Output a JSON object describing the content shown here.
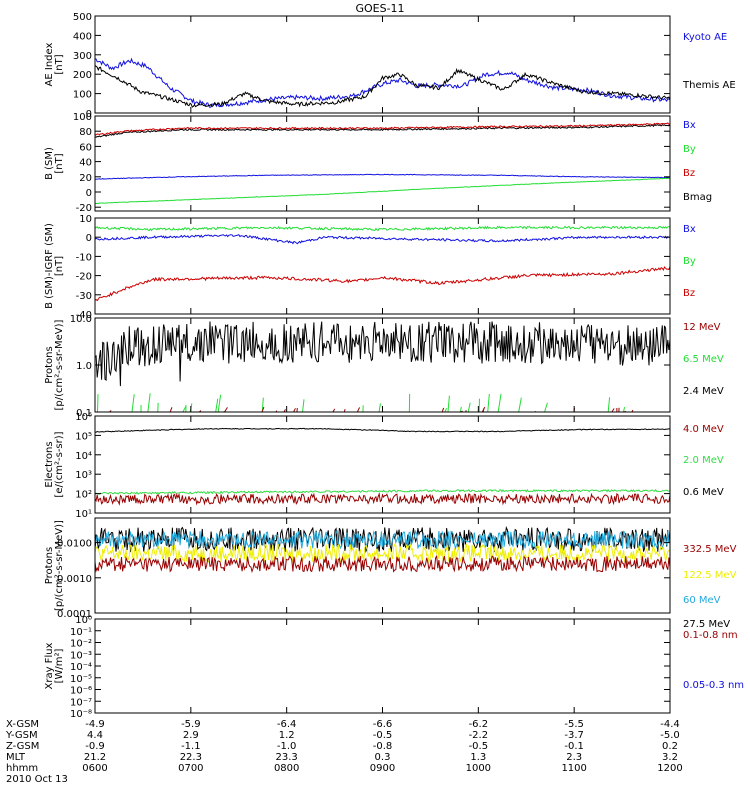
{
  "title": "GOES-11",
  "colors": {
    "black": "#000000",
    "blue": "#1010e0",
    "red": "#cc0000",
    "darkred": "#990000",
    "green": "#22dd33",
    "lgreen": "#33dd44",
    "cyan": "#22aadd",
    "yellow": "#eeee00"
  },
  "chart_data": [
    {
      "type": "line",
      "ylabel": "AE Index\n[nT]",
      "ylim": [
        0,
        500
      ],
      "log": false,
      "ticks": [
        "0",
        "100",
        "200",
        "300",
        "400",
        "500"
      ],
      "tickvals": [
        0,
        100,
        200,
        300,
        400,
        500
      ],
      "legend": [
        {
          "name": "Kyoto AE",
          "color": "blue"
        },
        {
          "name": "Themis AE",
          "color": "black"
        }
      ],
      "series": [
        {
          "name": "Kyoto AE",
          "color": "blue",
          "mode": "noisy",
          "noise": 12,
          "points": [
            [
              0,
              280
            ],
            [
              0.03,
              230
            ],
            [
              0.06,
              270
            ],
            [
              0.09,
              240
            ],
            [
              0.13,
              130
            ],
            [
              0.17,
              60
            ],
            [
              0.2,
              40
            ],
            [
              0.25,
              50
            ],
            [
              0.3,
              70
            ],
            [
              0.35,
              80
            ],
            [
              0.4,
              75
            ],
            [
              0.45,
              90
            ],
            [
              0.5,
              150
            ],
            [
              0.53,
              170
            ],
            [
              0.56,
              140
            ],
            [
              0.6,
              145
            ],
            [
              0.64,
              140
            ],
            [
              0.68,
              200
            ],
            [
              0.72,
              210
            ],
            [
              0.75,
              170
            ],
            [
              0.8,
              130
            ],
            [
              0.85,
              120
            ],
            [
              0.9,
              90
            ],
            [
              0.95,
              75
            ],
            [
              1,
              65
            ]
          ]
        },
        {
          "name": "Themis AE",
          "color": "black",
          "mode": "noisy",
          "noise": 10,
          "points": [
            [
              0,
              240
            ],
            [
              0.04,
              180
            ],
            [
              0.08,
              110
            ],
            [
              0.12,
              80
            ],
            [
              0.17,
              40
            ],
            [
              0.22,
              45
            ],
            [
              0.26,
              100
            ],
            [
              0.3,
              60
            ],
            [
              0.35,
              45
            ],
            [
              0.42,
              55
            ],
            [
              0.47,
              85
            ],
            [
              0.5,
              180
            ],
            [
              0.53,
              200
            ],
            [
              0.56,
              140
            ],
            [
              0.6,
              130
            ],
            [
              0.63,
              220
            ],
            [
              0.67,
              170
            ],
            [
              0.71,
              120
            ],
            [
              0.75,
              200
            ],
            [
              0.8,
              150
            ],
            [
              0.85,
              110
            ],
            [
              0.9,
              100
            ],
            [
              0.95,
              90
            ],
            [
              1,
              75
            ]
          ]
        }
      ]
    },
    {
      "type": "line",
      "ylabel": "B (SM)\n[nT]",
      "ylim": [
        -25,
        100
      ],
      "log": false,
      "ticks": [
        "-20",
        "0",
        "20",
        "40",
        "60",
        "80",
        "100"
      ],
      "tickvals": [
        -20,
        0,
        20,
        40,
        60,
        80,
        100
      ],
      "legend": [
        {
          "name": "Bx",
          "color": "blue"
        },
        {
          "name": "By",
          "color": "green"
        },
        {
          "name": "Bz",
          "color": "red"
        },
        {
          "name": "Bmag",
          "color": "black"
        }
      ],
      "series": [
        {
          "name": "Bmag",
          "color": "black",
          "mode": "noisy",
          "noise": 1,
          "points": [
            [
              0,
              72
            ],
            [
              0.05,
              78
            ],
            [
              0.15,
              82
            ],
            [
              0.3,
              82
            ],
            [
              0.5,
              82
            ],
            [
              0.7,
              84
            ],
            [
              0.85,
              85
            ],
            [
              1,
              88
            ]
          ]
        },
        {
          "name": "Bz",
          "color": "red",
          "mode": "noisy",
          "noise": 1,
          "points": [
            [
              0,
              75
            ],
            [
              0.05,
              80
            ],
            [
              0.15,
              84
            ],
            [
              0.3,
              84
            ],
            [
              0.5,
              84
            ],
            [
              0.7,
              86
            ],
            [
              0.85,
              87
            ],
            [
              1,
              90
            ]
          ]
        },
        {
          "name": "Bx",
          "color": "blue",
          "mode": "noisy",
          "noise": 0.4,
          "points": [
            [
              0,
              17
            ],
            [
              0.15,
              20
            ],
            [
              0.3,
              22
            ],
            [
              0.5,
              23
            ],
            [
              0.7,
              22
            ],
            [
              0.85,
              20
            ],
            [
              1,
              19
            ]
          ]
        },
        {
          "name": "By",
          "color": "green",
          "mode": "noisy",
          "noise": 0.3,
          "points": [
            [
              0,
              -15
            ],
            [
              0.2,
              -9
            ],
            [
              0.4,
              -3
            ],
            [
              0.6,
              5
            ],
            [
              0.8,
              12
            ],
            [
              1,
              18
            ]
          ]
        }
      ]
    },
    {
      "type": "line",
      "ylabel": "B (SM)-IGRF (SM)\n[nT]",
      "ylim": [
        -40,
        10
      ],
      "log": false,
      "ticks": [
        "-40",
        "-30",
        "-20",
        "-10",
        "0",
        "10"
      ],
      "tickvals": [
        -40,
        -30,
        -20,
        -10,
        0,
        10
      ],
      "legend": [
        {
          "name": "Bx",
          "color": "blue"
        },
        {
          "name": "By",
          "color": "green"
        },
        {
          "name": "Bz",
          "color": "red"
        }
      ],
      "series": [
        {
          "name": "By",
          "color": "green",
          "mode": "noisy",
          "noise": 0.6,
          "points": [
            [
              0,
              5
            ],
            [
              0.1,
              4
            ],
            [
              0.3,
              5
            ],
            [
              0.5,
              4
            ],
            [
              0.7,
              5
            ],
            [
              1,
              5
            ]
          ]
        },
        {
          "name": "Bx",
          "color": "blue",
          "mode": "noisy",
          "noise": 0.6,
          "points": [
            [
              0,
              -1
            ],
            [
              0.1,
              0
            ],
            [
              0.25,
              1
            ],
            [
              0.35,
              -3
            ],
            [
              0.4,
              0
            ],
            [
              0.55,
              -1
            ],
            [
              0.7,
              -2
            ],
            [
              0.85,
              0
            ],
            [
              1,
              0
            ]
          ]
        },
        {
          "name": "Bz",
          "color": "red",
          "mode": "noisy",
          "noise": 0.8,
          "points": [
            [
              0,
              -33
            ],
            [
              0.05,
              -27
            ],
            [
              0.1,
              -22
            ],
            [
              0.3,
              -21
            ],
            [
              0.45,
              -23
            ],
            [
              0.5,
              -21
            ],
            [
              0.6,
              -24
            ],
            [
              0.75,
              -20
            ],
            [
              0.9,
              -19
            ],
            [
              1,
              -16
            ]
          ]
        }
      ]
    },
    {
      "type": "line",
      "ylabel": "Protons\n[p/(cm²-s-sr-MeV)]",
      "ylim": [
        0.1,
        10
      ],
      "log": true,
      "ticks": [
        "0.1",
        "1.0",
        "10.0"
      ],
      "tickvals": [
        0.1,
        1,
        10
      ],
      "legend": [
        {
          "name": "12 MeV",
          "color": "darkred"
        },
        {
          "name": "6.5 MeV",
          "color": "green"
        },
        {
          "name": "2.4 MeV",
          "color": "black"
        }
      ],
      "series": [
        {
          "name": "2.4 MeV",
          "color": "black",
          "mode": "lognoisy",
          "noise": 0.45,
          "spikes": true,
          "points": [
            [
              0,
              0.6
            ],
            [
              0.05,
              2.5
            ],
            [
              0.2,
              3
            ],
            [
              0.5,
              3
            ],
            [
              0.8,
              3
            ],
            [
              1,
              2.5
            ]
          ]
        },
        {
          "name": "6.5 MeV",
          "color": "green",
          "mode": "sparse",
          "level": 0.12,
          "top": 0.25
        },
        {
          "name": "12 MeV",
          "color": "darkred",
          "mode": "sparse",
          "level": 0.1,
          "top": 0.13
        }
      ]
    },
    {
      "type": "line",
      "ylabel": "Electrons\n[e/(cm²-s-sr)]",
      "ylim": [
        10,
        1000000
      ],
      "log": true,
      "ticks": [
        "10¹",
        "10²",
        "10³",
        "10⁴",
        "10⁵",
        "10⁶"
      ],
      "tickvals": [
        10,
        100,
        1000,
        10000,
        100000,
        1000000
      ],
      "legend": [
        {
          "name": "4.0 MeV",
          "color": "darkred"
        },
        {
          "name": "2.0 MeV",
          "color": "lgreen"
        },
        {
          "name": "0.6 MeV",
          "color": "black"
        }
      ],
      "series": [
        {
          "name": "0.6 MeV",
          "color": "black",
          "mode": "lognoisy",
          "noise": 0.02,
          "points": [
            [
              0,
              150000
            ],
            [
              0.2,
              220000
            ],
            [
              0.4,
              220000
            ],
            [
              0.55,
              160000
            ],
            [
              0.7,
              160000
            ],
            [
              0.85,
              200000
            ],
            [
              1,
              210000
            ]
          ]
        },
        {
          "name": "2.0 MeV",
          "color": "lgreen",
          "mode": "lognoisy",
          "noise": 0.05,
          "points": [
            [
              0,
              100
            ],
            [
              0.3,
              120
            ],
            [
              0.6,
              140
            ],
            [
              1,
              140
            ]
          ]
        },
        {
          "name": "4.0 MeV",
          "color": "darkred",
          "mode": "lognoisy",
          "noise": 0.25,
          "points": [
            [
              0,
              50
            ],
            [
              0.5,
              55
            ],
            [
              1,
              55
            ]
          ]
        }
      ]
    },
    {
      "type": "line",
      "ylabel": "Protons\n[p/(cm²-s-sr-MeV)]",
      "ylim": [
        0.0001,
        0.05
      ],
      "log": true,
      "ticks": [
        "0.0001",
        "0.0010",
        "0.0100"
      ],
      "tickvals": [
        0.0001,
        0.001,
        0.01
      ],
      "legend": [
        {
          "name": "332.5 MeV",
          "color": "darkred"
        },
        {
          "name": "122.5 MeV",
          "color": "yellow"
        },
        {
          "name": "60 MeV",
          "color": "cyan"
        },
        {
          "name": "27.5 MeV",
          "color": "black"
        }
      ],
      "series": [
        {
          "name": "27.5 MeV",
          "color": "black",
          "mode": "lognoisy",
          "noise": 0.35,
          "points": [
            [
              0,
              0.012
            ],
            [
              1,
              0.012
            ]
          ]
        },
        {
          "name": "60 MeV",
          "color": "cyan",
          "mode": "lognoisy",
          "noise": 0.25,
          "points": [
            [
              0,
              0.012
            ],
            [
              1,
              0.012
            ]
          ]
        },
        {
          "name": "122.5 MeV",
          "color": "yellow",
          "mode": "lognoisy",
          "noise": 0.25,
          "points": [
            [
              0,
              0.005
            ],
            [
              1,
              0.005
            ]
          ]
        },
        {
          "name": "332.5 MeV",
          "color": "darkred",
          "mode": "lognoisy",
          "noise": 0.22,
          "points": [
            [
              0,
              0.0025
            ],
            [
              1,
              0.0025
            ]
          ]
        }
      ]
    },
    {
      "type": "line",
      "ylabel": "Xray Flux\n[W/m²]",
      "ylim": [
        1e-08,
        1
      ],
      "log": true,
      "ticks": [
        "10⁻⁸",
        "10⁻⁷",
        "10⁻⁶",
        "10⁻⁵",
        "10⁻⁴",
        "10⁻³",
        "10⁻²",
        "10⁻¹",
        "10⁰"
      ],
      "tickvals": [
        1e-08,
        1e-07,
        1e-06,
        1e-05,
        0.0001,
        0.001,
        0.01,
        0.1,
        1
      ],
      "legend": [
        {
          "name": "0.1-0.8 nm",
          "color": "darkred"
        },
        {
          "name": "0.05-0.3 nm",
          "color": "blue"
        }
      ],
      "series": []
    }
  ],
  "x_axis": {
    "row_labels": [
      "X-GSM",
      "Y-GSM",
      "Z-GSM",
      "MLT",
      "hhmm"
    ],
    "columns": [
      [
        "-4.9",
        "4.4",
        "-0.9",
        "21.2",
        "0600"
      ],
      [
        "-5.9",
        "2.9",
        "-1.1",
        "22.3",
        "0700"
      ],
      [
        "-6.4",
        "1.2",
        "-1.0",
        "23.3",
        "0800"
      ],
      [
        "-6.6",
        "-0.5",
        "-0.8",
        "0.3",
        "0900"
      ],
      [
        "-6.2",
        "-2.2",
        "-0.5",
        "1.3",
        "1000"
      ],
      [
        "-5.5",
        "-3.7",
        "-0.1",
        "2.3",
        "1100"
      ],
      [
        "-4.4",
        "-5.0",
        "0.2",
        "3.2",
        "1200"
      ]
    ],
    "date": "2010 Oct 13"
  }
}
